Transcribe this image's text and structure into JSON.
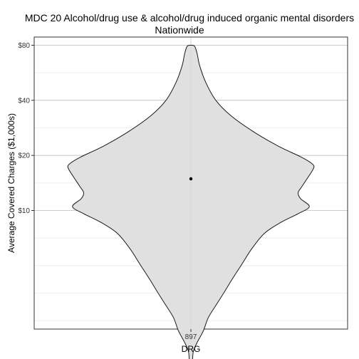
{
  "chart_data": {
    "type": "violin",
    "title": [
      "MDC 20 Alcohol/drug use & alcohol/drug induced organic mental disorders",
      "Nationwide"
    ],
    "xlabel": "DRG",
    "ylabel": "Average Covered Charges ($1,000s)",
    "y_scale": "log",
    "categories": [
      "897"
    ],
    "y_ticks": [
      {
        "value": 10,
        "label": "$10"
      },
      {
        "value": 20,
        "label": "$20"
      },
      {
        "value": 40,
        "label": "$40"
      },
      {
        "value": 80,
        "label": "$80"
      }
    ],
    "ylim": [
      1.2,
      88
    ],
    "grid": true,
    "point_estimate": 14.9,
    "density_profile": [
      {
        "y": 1.35,
        "w": 0.01
      },
      {
        "y": 1.5,
        "w": 0.013
      },
      {
        "y": 1.7,
        "w": 0.02
      },
      {
        "y": 1.9,
        "w": 0.05
      },
      {
        "y": 2.2,
        "w": 0.1
      },
      {
        "y": 2.6,
        "w": 0.14
      },
      {
        "y": 3.1,
        "w": 0.21
      },
      {
        "y": 3.6,
        "w": 0.27
      },
      {
        "y": 4.2,
        "w": 0.33
      },
      {
        "y": 5.1,
        "w": 0.41
      },
      {
        "y": 6.2,
        "w": 0.49
      },
      {
        "y": 7.5,
        "w": 0.59
      },
      {
        "y": 8.6,
        "w": 0.72
      },
      {
        "y": 9.6,
        "w": 0.86
      },
      {
        "y": 10.5,
        "w": 0.95
      },
      {
        "y": 11.6,
        "w": 0.88
      },
      {
        "y": 12.5,
        "w": 0.86
      },
      {
        "y": 13.5,
        "w": 0.89
      },
      {
        "y": 15.2,
        "w": 0.94
      },
      {
        "y": 16.8,
        "w": 0.98
      },
      {
        "y": 17.8,
        "w": 0.98
      },
      {
        "y": 19.5,
        "w": 0.89
      },
      {
        "y": 22.5,
        "w": 0.7
      },
      {
        "y": 27,
        "w": 0.5
      },
      {
        "y": 33,
        "w": 0.32
      },
      {
        "y": 40,
        "w": 0.2
      },
      {
        "y": 50,
        "w": 0.12
      },
      {
        "y": 62,
        "w": 0.07
      },
      {
        "y": 72,
        "w": 0.05
      },
      {
        "y": 79,
        "w": 0.03
      },
      {
        "y": 80,
        "w": 0.0
      }
    ],
    "colors": {
      "fill": "#e0e0e0",
      "outline": "#1a1a1a",
      "panel_border": "#333333",
      "grid_major": "#bdbdbd",
      "grid_minor": "#ededed",
      "point": "#000000"
    }
  }
}
